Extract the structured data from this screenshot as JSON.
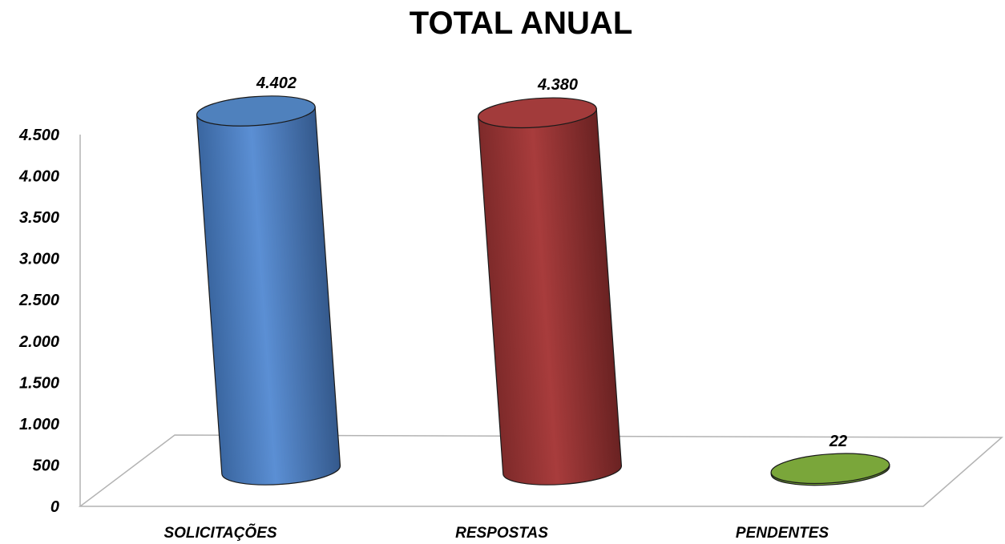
{
  "chart_data": {
    "type": "bar",
    "title": "TOTAL ANUAL",
    "categories": [
      "SOLICITAÇÕES",
      "RESPOSTAS",
      "PENDENTES"
    ],
    "values": [
      4402,
      4380,
      22
    ],
    "value_labels": [
      "4.402",
      "4.380",
      "22"
    ],
    "ylim": [
      0,
      4500
    ],
    "yticks": [
      0,
      500,
      1000,
      1500,
      2000,
      2500,
      3000,
      3500,
      4000,
      4500
    ],
    "ytick_labels": [
      "0",
      "500",
      "1.000",
      "1.500",
      "2.000",
      "2.500",
      "3.000",
      "3.500",
      "4.000",
      "4.500"
    ],
    "xlabel": "",
    "ylabel": "",
    "grid": false,
    "legend": "none",
    "style": "3d-cylinder",
    "colors": [
      "#4f81bd",
      "#a23b3b",
      "#7aa63a"
    ]
  }
}
